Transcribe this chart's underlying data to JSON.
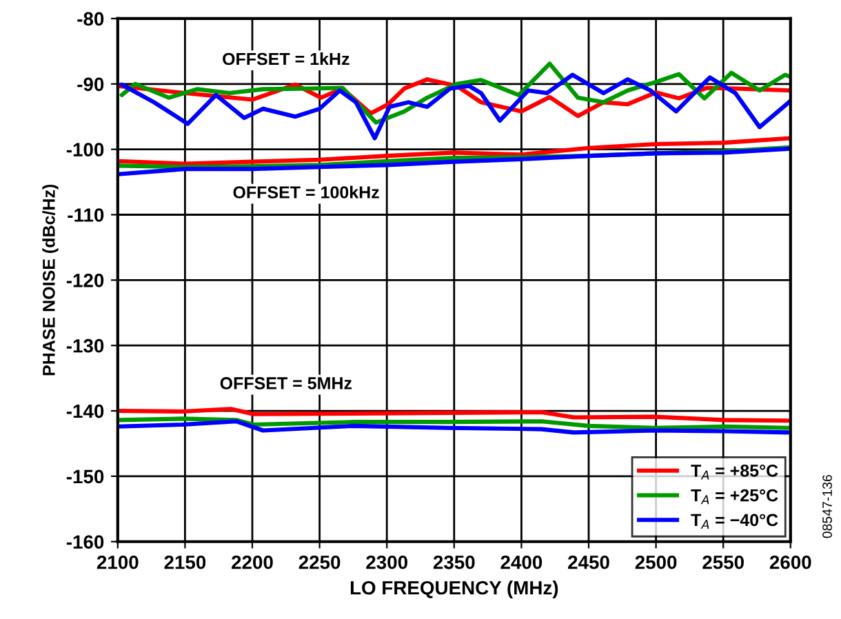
{
  "chart_data": {
    "type": "line",
    "xlabel": "LO FREQUENCY (MHz)",
    "ylabel": "PHASE NOISE (dBc/Hz)",
    "xlim": [
      2100,
      2600
    ],
    "xticks": [
      2100,
      2150,
      2200,
      2250,
      2300,
      2350,
      2400,
      2450,
      2500,
      2550,
      2600
    ],
    "ylim": [
      -160,
      -80
    ],
    "yticks": [
      -160,
      -150,
      -140,
      -130,
      -120,
      -110,
      -100,
      -90,
      -80
    ],
    "grid": true,
    "legend": "bottom right",
    "marker": "none",
    "line_style": "solid",
    "series": [
      {
        "name": "T$_{A}$ = +85°C",
        "color": "#ff0000",
        "x": [
          2100,
          2150,
          2200,
          2232,
          2251,
          2267,
          2288,
          2301,
          2313,
          2330,
          2352,
          2370,
          2400,
          2421,
          2442,
          2461,
          2479,
          2500,
          2517,
          2538,
          2559,
          2600
        ],
        "values": [
          -90.3,
          -91.4,
          -92.4,
          -90.1,
          -92.1,
          -90.7,
          -94.5,
          -93.1,
          -90.7,
          -89.3,
          -90.3,
          -92.8,
          -94.2,
          -92,
          -94.9,
          -92.8,
          -93.1,
          -91.3,
          -92.2,
          -90.6,
          -90.7,
          -91
        ]
      },
      {
        "name": "T$_{A}$ = +25°C",
        "color": "#009900",
        "x": [
          2103,
          2113,
          2138,
          2159,
          2183,
          2208,
          2243,
          2267,
          2292,
          2313,
          2330,
          2352,
          2370,
          2398,
          2421,
          2442,
          2461,
          2479,
          2500,
          2517,
          2536,
          2556,
          2577,
          2596,
          2600
        ],
        "values": [
          -91.7,
          -90,
          -92.1,
          -90.8,
          -91.4,
          -90.8,
          -90.7,
          -90.6,
          -95.9,
          -94.2,
          -92.1,
          -90,
          -89.4,
          -91.7,
          -86.9,
          -92.1,
          -92.8,
          -91,
          -89.7,
          -88.5,
          -92.2,
          -88.3,
          -91,
          -88.6,
          -88.9
        ]
      },
      {
        "name": "T$_{A}$ = −40°C",
        "color": "#0000ff",
        "x": [
          2103,
          2127,
          2152,
          2173,
          2194,
          2208,
          2232,
          2250,
          2265,
          2277,
          2291,
          2302,
          2316,
          2330,
          2347,
          2361,
          2370,
          2384,
          2405,
          2419,
          2438,
          2461,
          2479,
          2496,
          2515,
          2540,
          2559,
          2577,
          2600
        ],
        "values": [
          -90.1,
          -92.8,
          -96.1,
          -91.7,
          -95.2,
          -93.8,
          -95,
          -93.8,
          -91,
          -92.8,
          -98.3,
          -93.5,
          -92.8,
          -93.5,
          -90.7,
          -90.3,
          -91.4,
          -95.6,
          -91,
          -91.4,
          -88.6,
          -91.4,
          -89.3,
          -91,
          -94.2,
          -89,
          -91.4,
          -96.6,
          -92.6
        ]
      },
      {
        "color": "#ff0000",
        "x": [
          2100,
          2150,
          2200,
          2250,
          2300,
          2350,
          2400,
          2450,
          2500,
          2550,
          2600
        ],
        "values": [
          -101.8,
          -102.2,
          -101.9,
          -101.6,
          -101.0,
          -100.5,
          -100.8,
          -99.8,
          -99.2,
          -99.0,
          -98.3
        ]
      },
      {
        "color": "#009900",
        "x": [
          2100,
          2150,
          2200,
          2250,
          2300,
          2350,
          2400,
          2450,
          2500,
          2550,
          2600
        ],
        "values": [
          -102.5,
          -102.7,
          -102.6,
          -102.4,
          -101.8,
          -101.3,
          -101.2,
          -101.0,
          -100.6,
          -100.3,
          -99.7
        ]
      },
      {
        "color": "#0000ff",
        "x": [
          2100,
          2150,
          2200,
          2250,
          2300,
          2350,
          2400,
          2450,
          2500,
          2550,
          2600
        ],
        "values": [
          -103.8,
          -103.0,
          -103.0,
          -102.7,
          -102.4,
          -101.9,
          -101.5,
          -101.0,
          -100.6,
          -100.5,
          -99.9
        ]
      },
      {
        "color": "#ff0000",
        "x": [
          2100,
          2148,
          2184,
          2201,
          2275,
          2415,
          2439,
          2499,
          2551,
          2598
        ],
        "values": [
          -140,
          -140.1,
          -139.7,
          -140.5,
          -140.4,
          -140.2,
          -141,
          -140.9,
          -141.4,
          -141.5
        ]
      },
      {
        "color": "#009900",
        "x": [
          2100,
          2148,
          2188,
          2201,
          2275,
          2345,
          2415,
          2450,
          2499,
          2551,
          2598
        ],
        "values": [
          -141.4,
          -141.2,
          -141.4,
          -142.1,
          -141.7,
          -141.7,
          -141.6,
          -142.3,
          -142.6,
          -142.4,
          -142.6
        ]
      },
      {
        "color": "#0000ff",
        "x": [
          2100,
          2148,
          2188,
          2208,
          2275,
          2345,
          2415,
          2439,
          2499,
          2551,
          2598
        ],
        "values": [
          -142.4,
          -142.1,
          -141.6,
          -143,
          -142.3,
          -142.6,
          -142.8,
          -143.3,
          -143,
          -143.1,
          -143.3
        ]
      }
    ],
    "annotations": [
      "OFFSET = 1kHz",
      "OFFSET = 100kHz",
      "OFFSET = 5MHz",
      "08547-136"
    ]
  }
}
